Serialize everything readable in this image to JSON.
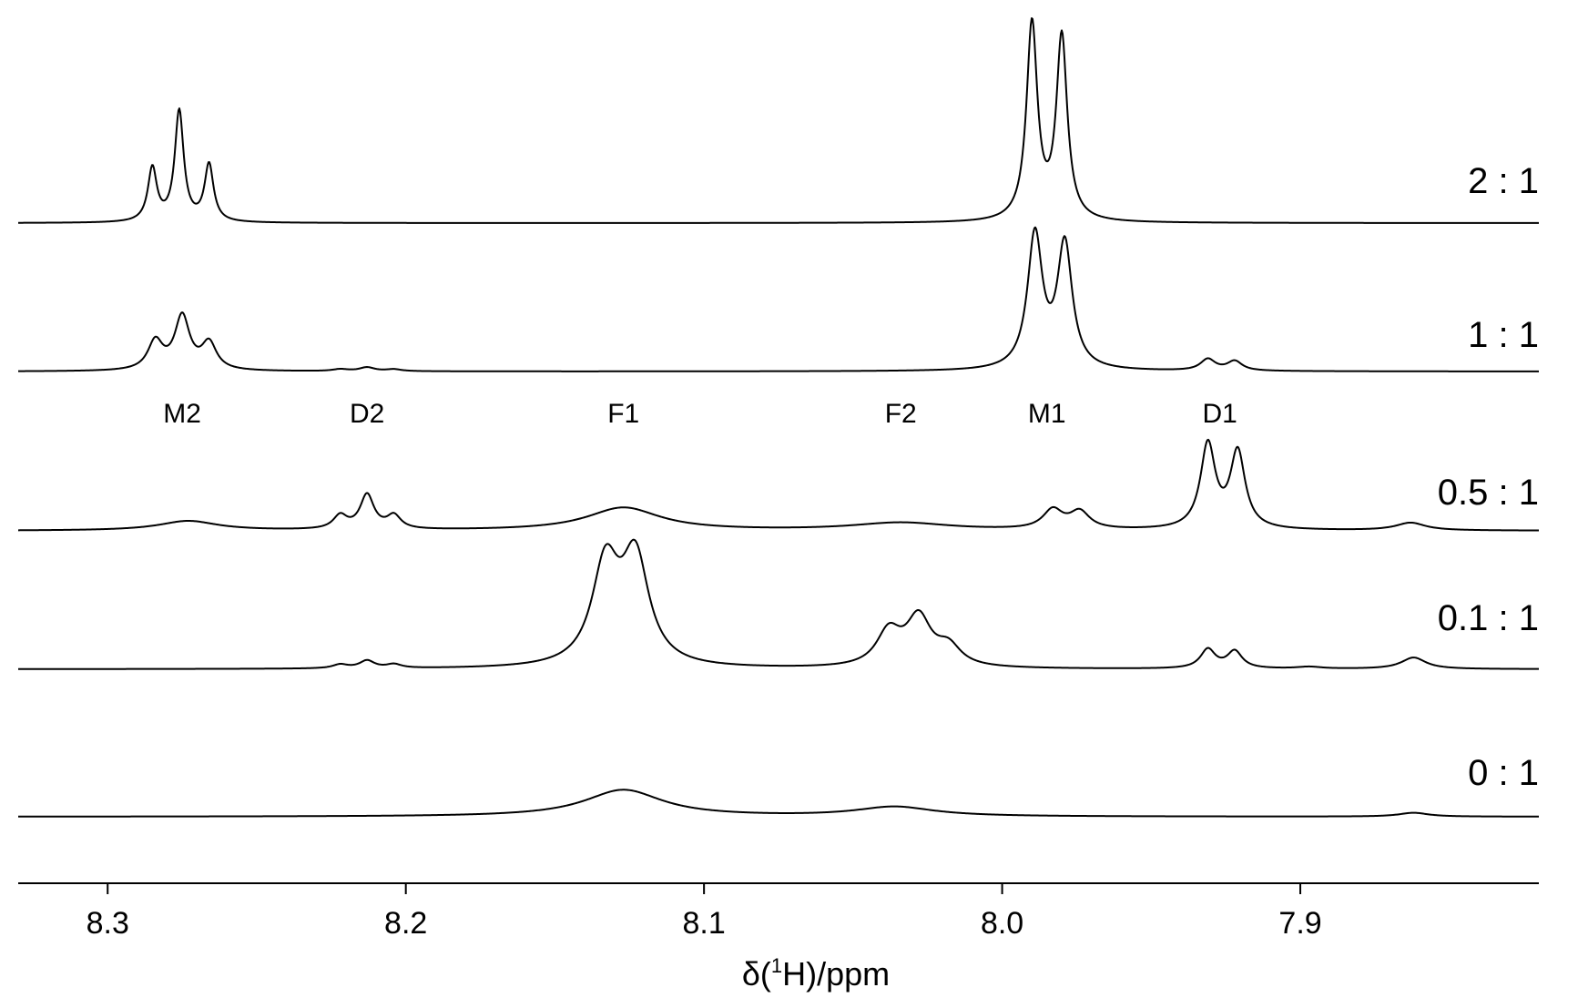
{
  "chart_data": {
    "type": "line",
    "title": "",
    "xlabel": {
      "prefix": "δ(",
      "sup": "1",
      "suffix": "H)/ppm"
    },
    "ylabel": "",
    "xlim": [
      8.33,
      7.82
    ],
    "x_reversed": true,
    "xticks": [
      8.3,
      8.2,
      8.1,
      8.0,
      7.9
    ],
    "xtick_labels": [
      "8.3",
      "8.2",
      "8.1",
      "8.0",
      "7.9"
    ],
    "grid": false,
    "legend": "none",
    "line_color": "#000000",
    "peak_labels": [
      {
        "text": "M2",
        "x": 8.275
      },
      {
        "text": "D2",
        "x": 8.213
      },
      {
        "text": "F1",
        "x": 8.127
      },
      {
        "text": "F2",
        "x": 8.034
      },
      {
        "text": "M1",
        "x": 7.985
      },
      {
        "text": "D1",
        "x": 7.927
      }
    ],
    "series": [
      {
        "name": "2 : 1",
        "peaks": [
          {
            "x": 8.285,
            "h": 0.28,
            "w": 0.0018
          },
          {
            "x": 8.276,
            "h": 0.58,
            "w": 0.0018
          },
          {
            "x": 8.266,
            "h": 0.3,
            "w": 0.0018
          },
          {
            "x": 7.99,
            "h": 1.03,
            "w": 0.0022
          },
          {
            "x": 7.98,
            "h": 0.96,
            "w": 0.0022
          }
        ]
      },
      {
        "name": "1 : 1",
        "peaks": [
          {
            "x": 8.284,
            "h": 0.15,
            "w": 0.003
          },
          {
            "x": 8.275,
            "h": 0.28,
            "w": 0.003
          },
          {
            "x": 8.266,
            "h": 0.14,
            "w": 0.003
          },
          {
            "x": 8.222,
            "h": 0.01,
            "w": 0.003
          },
          {
            "x": 8.213,
            "h": 0.02,
            "w": 0.003
          },
          {
            "x": 8.204,
            "h": 0.01,
            "w": 0.003
          },
          {
            "x": 7.989,
            "h": 0.7,
            "w": 0.003
          },
          {
            "x": 7.979,
            "h": 0.65,
            "w": 0.003
          },
          {
            "x": 7.931,
            "h": 0.06,
            "w": 0.003
          },
          {
            "x": 7.922,
            "h": 0.05,
            "w": 0.003
          }
        ]
      },
      {
        "name": "0.5 : 1",
        "peaks": [
          {
            "x": 8.273,
            "h": 0.05,
            "w": 0.012
          },
          {
            "x": 8.222,
            "h": 0.07,
            "w": 0.0028
          },
          {
            "x": 8.213,
            "h": 0.18,
            "w": 0.0028
          },
          {
            "x": 8.204,
            "h": 0.07,
            "w": 0.0028
          },
          {
            "x": 8.127,
            "h": 0.12,
            "w": 0.015
          },
          {
            "x": 8.034,
            "h": 0.04,
            "w": 0.02
          },
          {
            "x": 7.983,
            "h": 0.1,
            "w": 0.004
          },
          {
            "x": 7.974,
            "h": 0.09,
            "w": 0.004
          },
          {
            "x": 7.931,
            "h": 0.44,
            "w": 0.003
          },
          {
            "x": 7.921,
            "h": 0.4,
            "w": 0.003
          },
          {
            "x": 7.863,
            "h": 0.04,
            "w": 0.006
          }
        ]
      },
      {
        "name": "0.1 : 1",
        "peaks": [
          {
            "x": 8.222,
            "h": 0.02,
            "w": 0.003
          },
          {
            "x": 8.213,
            "h": 0.04,
            "w": 0.003
          },
          {
            "x": 8.204,
            "h": 0.02,
            "w": 0.003
          },
          {
            "x": 8.133,
            "h": 0.52,
            "w": 0.0055
          },
          {
            "x": 8.123,
            "h": 0.55,
            "w": 0.0055
          },
          {
            "x": 8.038,
            "h": 0.18,
            "w": 0.005
          },
          {
            "x": 8.028,
            "h": 0.25,
            "w": 0.005
          },
          {
            "x": 8.018,
            "h": 0.1,
            "w": 0.005
          },
          {
            "x": 7.931,
            "h": 0.1,
            "w": 0.003
          },
          {
            "x": 7.922,
            "h": 0.09,
            "w": 0.003
          },
          {
            "x": 7.897,
            "h": 0.01,
            "w": 0.005
          },
          {
            "x": 7.862,
            "h": 0.06,
            "w": 0.005
          }
        ]
      },
      {
        "name": "0 : 1",
        "peaks": [
          {
            "x": 8.127,
            "h": 0.14,
            "w": 0.016
          },
          {
            "x": 8.036,
            "h": 0.05,
            "w": 0.016
          },
          {
            "x": 7.862,
            "h": 0.02,
            "w": 0.006
          }
        ]
      }
    ]
  }
}
